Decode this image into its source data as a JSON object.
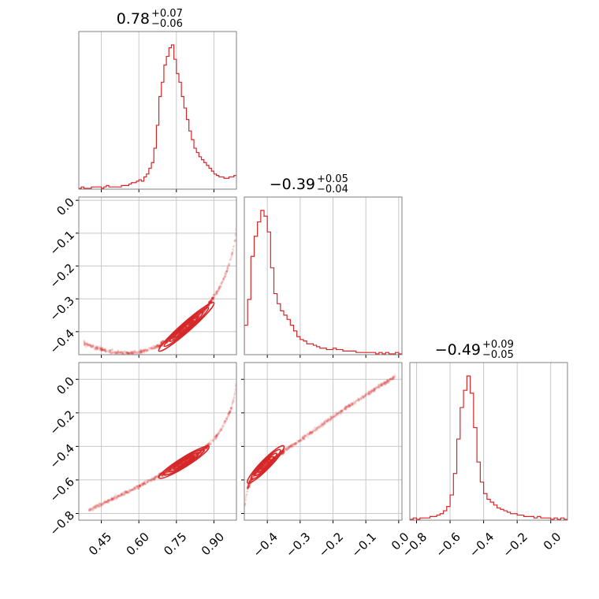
{
  "chart_data": {
    "type": "corner",
    "color": "#d62728",
    "grid": true,
    "parameters": [
      {
        "title_value": "0.78",
        "title_plus": "+0.07",
        "title_minus": "−0.06",
        "range": [
          0.36,
          0.99
        ],
        "ticks": [
          0.45,
          0.6,
          0.75,
          0.9
        ],
        "tick_labels": [
          "0.45",
          "0.60",
          "0.75",
          "0.90"
        ]
      },
      {
        "title_value": "−0.39",
        "title_plus": "+0.05",
        "title_minus": "−0.04",
        "range": [
          -0.47,
          0.01
        ],
        "ticks": [
          -0.4,
          -0.3,
          -0.2,
          -0.1,
          0.0
        ],
        "tick_labels": [
          "−0.4",
          "−0.3",
          "−0.2",
          "−0.1",
          "0.0"
        ]
      },
      {
        "title_value": "−0.49",
        "title_plus": "+0.09",
        "title_minus": "−0.05",
        "range": [
          -0.84,
          0.1
        ],
        "ticks": [
          -0.8,
          -0.6,
          -0.4,
          -0.2,
          0.0
        ],
        "tick_labels": [
          "−0.8",
          "−0.6",
          "−0.4",
          "−0.2",
          "0.0"
        ]
      }
    ],
    "histograms": [
      {
        "param": 0,
        "bins": [
          0.36,
          0.37,
          0.38,
          0.39,
          0.4,
          0.41,
          0.42,
          0.43,
          0.44,
          0.45,
          0.46,
          0.47,
          0.48,
          0.49,
          0.5,
          0.51,
          0.52,
          0.53,
          0.54,
          0.55,
          0.56,
          0.57,
          0.58,
          0.59,
          0.6,
          0.61,
          0.62,
          0.63,
          0.64,
          0.65,
          0.66,
          0.67,
          0.68,
          0.69,
          0.7,
          0.71,
          0.72,
          0.73,
          0.74,
          0.75,
          0.76,
          0.77,
          0.78,
          0.79,
          0.8,
          0.81,
          0.82,
          0.83,
          0.84,
          0.85,
          0.86,
          0.87,
          0.88,
          0.89,
          0.9,
          0.91,
          0.92,
          0.93,
          0.94,
          0.95,
          0.96,
          0.97,
          0.98,
          0.99
        ],
        "counts": [
          0,
          1,
          0,
          0,
          0,
          1,
          1,
          1,
          1,
          0,
          1,
          2,
          1,
          1,
          1,
          1,
          1,
          2,
          2,
          2,
          3,
          4,
          4,
          5,
          6,
          5,
          8,
          10,
          14,
          18,
          28,
          44,
          64,
          74,
          86,
          92,
          98,
          100,
          90,
          80,
          74,
          64,
          56,
          48,
          40,
          34,
          28,
          25,
          22,
          20,
          18,
          16,
          14,
          12,
          10,
          9,
          8,
          8,
          7,
          7,
          8,
          8,
          9
        ]
      },
      {
        "param": 1,
        "bins": [
          -0.47,
          -0.46,
          -0.45,
          -0.44,
          -0.43,
          -0.42,
          -0.41,
          -0.4,
          -0.39,
          -0.38,
          -0.37,
          -0.36,
          -0.35,
          -0.34,
          -0.33,
          -0.32,
          -0.31,
          -0.3,
          -0.29,
          -0.28,
          -0.27,
          -0.26,
          -0.25,
          -0.24,
          -0.23,
          -0.22,
          -0.21,
          -0.2,
          -0.19,
          -0.18,
          -0.17,
          -0.16,
          -0.15,
          -0.14,
          -0.13,
          -0.12,
          -0.11,
          -0.1,
          -0.09,
          -0.08,
          -0.07,
          -0.06,
          -0.05,
          -0.04,
          -0.03,
          -0.02,
          -0.01,
          0.0,
          0.01
        ],
        "counts": [
          20,
          38,
          68,
          82,
          92,
          100,
          96,
          85,
          60,
          42,
          35,
          30,
          27,
          24,
          20,
          16,
          12,
          10,
          9,
          7,
          7,
          6,
          5,
          4,
          4,
          3,
          3,
          4,
          3,
          3,
          2,
          2,
          2,
          2,
          1,
          1,
          1,
          1,
          1,
          1,
          0,
          1,
          0,
          1,
          0,
          0,
          1,
          0
        ]
      },
      {
        "param": 2,
        "bins": [
          -0.84,
          -0.82,
          -0.8,
          -0.78,
          -0.76,
          -0.74,
          -0.72,
          -0.7,
          -0.68,
          -0.66,
          -0.64,
          -0.62,
          -0.6,
          -0.58,
          -0.56,
          -0.54,
          -0.52,
          -0.5,
          -0.48,
          -0.46,
          -0.44,
          -0.42,
          -0.4,
          -0.38,
          -0.36,
          -0.34,
          -0.32,
          -0.3,
          -0.28,
          -0.26,
          -0.24,
          -0.22,
          -0.2,
          -0.18,
          -0.16,
          -0.14,
          -0.12,
          -0.1,
          -0.08,
          -0.06,
          -0.04,
          -0.02,
          0.0,
          0.02,
          0.04,
          0.06,
          0.08,
          0.1
        ],
        "counts": [
          0,
          1,
          0,
          1,
          1,
          1,
          2,
          2,
          3,
          4,
          6,
          9,
          17,
          32,
          56,
          78,
          90,
          100,
          88,
          64,
          40,
          26,
          18,
          14,
          12,
          10,
          8,
          7,
          6,
          5,
          4,
          4,
          3,
          3,
          2,
          2,
          2,
          1,
          2,
          1,
          1,
          1,
          0,
          1,
          0,
          1,
          0
        ]
      }
    ],
    "scatters": [
      {
        "x_param": 0,
        "y_param": 1,
        "ridge_x": [
          0.38,
          0.43,
          0.48,
          0.52,
          0.56,
          0.6,
          0.64,
          0.68,
          0.72,
          0.75,
          0.78,
          0.81,
          0.84,
          0.87,
          0.9,
          0.93,
          0.95,
          0.97,
          0.985,
          0.99
        ],
        "ridge_y": [
          -0.435,
          -0.45,
          -0.46,
          -0.465,
          -0.466,
          -0.463,
          -0.455,
          -0.442,
          -0.425,
          -0.41,
          -0.392,
          -0.372,
          -0.35,
          -0.325,
          -0.295,
          -0.255,
          -0.22,
          -0.17,
          -0.12,
          -0.08
        ],
        "core_range": [
          0.68,
          0.9
        ]
      },
      {
        "x_param": 0,
        "y_param": 2,
        "ridge_x": [
          0.4,
          0.45,
          0.5,
          0.55,
          0.6,
          0.65,
          0.7,
          0.75,
          0.78,
          0.81,
          0.84,
          0.87,
          0.9,
          0.93,
          0.95,
          0.97,
          0.985,
          0.99
        ],
        "ridge_y": [
          -0.78,
          -0.745,
          -0.71,
          -0.675,
          -0.64,
          -0.6,
          -0.56,
          -0.52,
          -0.495,
          -0.468,
          -0.44,
          -0.405,
          -0.36,
          -0.295,
          -0.24,
          -0.17,
          -0.08,
          -0.02
        ],
        "core_range": [
          0.68,
          0.88
        ]
      },
      {
        "x_param": 1,
        "y_param": 2,
        "ridge_x": [
          -0.47,
          -0.46,
          -0.45,
          -0.44,
          -0.43,
          -0.42,
          -0.4,
          -0.38,
          -0.35,
          -0.32,
          -0.28,
          -0.24,
          -0.2,
          -0.16,
          -0.12,
          -0.08,
          -0.04,
          -0.01
        ],
        "ridge_y": [
          -0.76,
          -0.65,
          -0.6,
          -0.57,
          -0.548,
          -0.53,
          -0.5,
          -0.47,
          -0.43,
          -0.39,
          -0.335,
          -0.28,
          -0.225,
          -0.17,
          -0.12,
          -0.07,
          -0.02,
          0.015
        ],
        "core_range": [
          -0.46,
          -0.35
        ]
      }
    ]
  }
}
